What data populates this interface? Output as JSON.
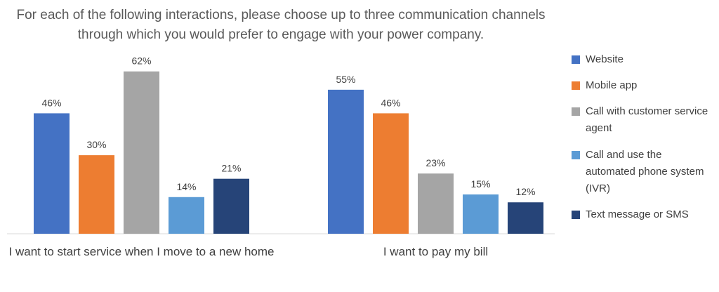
{
  "chart_data": {
    "type": "bar",
    "title": "For each of the following interactions, please choose up to three communication channels through which you would prefer to engage with your power company.",
    "categories": [
      "I want to start service when I move to a new home",
      "I want to pay my bill"
    ],
    "series": [
      {
        "name": "Website",
        "color": "#4472c4",
        "values": [
          46,
          55
        ],
        "value_labels": [
          "46%",
          "55%"
        ]
      },
      {
        "name": "Mobile app",
        "color": "#ed7d31",
        "values": [
          30,
          46
        ],
        "value_labels": [
          "30%",
          "46%"
        ]
      },
      {
        "name": "Call with customer service agent",
        "color": "#a5a5a5",
        "values": [
          62,
          23
        ],
        "value_labels": [
          "62%",
          "23%"
        ]
      },
      {
        "name": "Call and use the automated phone system (IVR)",
        "color": "#5b9bd5",
        "values": [
          14,
          15
        ],
        "value_labels": [
          "14%",
          "15%"
        ]
      },
      {
        "name": "Text message or SMS",
        "color": "#264478",
        "values": [
          21,
          12
        ],
        "value_labels": [
          "21%",
          "12%"
        ]
      }
    ]
  }
}
